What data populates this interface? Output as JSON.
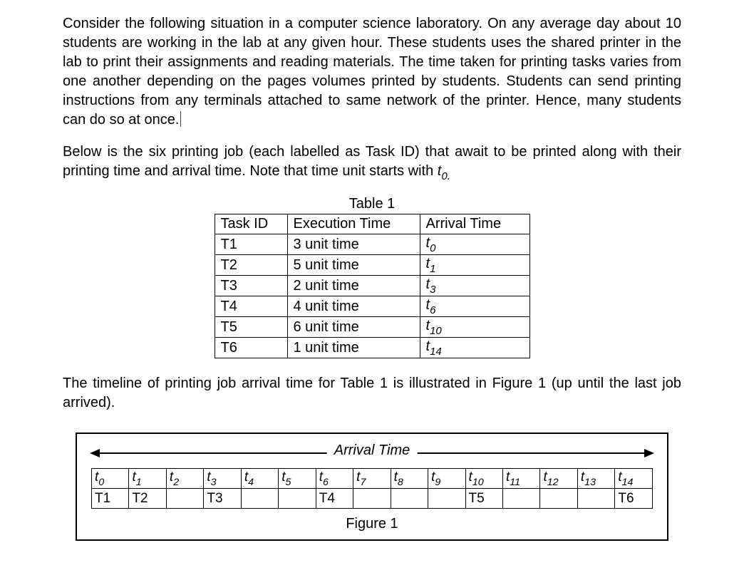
{
  "paragraph1_pre": "Consider the following situation in a computer science laboratory. On any average day about 10 students are working in the lab at any given hour. These students uses the shared printer in the lab to print their assignments and reading materials. The time taken for printing tasks varies from one another depending on the pages volumes printed by students. Students can send printing instructions from any terminals attached to same network of the printer. Hence, many students can do so at once.",
  "paragraph2_pre": "Below is the six printing job (each labelled as Task ID) that await to be printed along with their printing time and arrival time. Note that time unit starts with ",
  "paragraph2_t": "t",
  "paragraph2_sub": "0.",
  "table1": {
    "title": "Table 1",
    "headers": {
      "task": "Task ID",
      "exec": "Execution Time",
      "arr": "Arrival Time"
    },
    "rows": [
      {
        "task": "T1",
        "exec": "3 unit time",
        "arr_t": "t",
        "arr_sub": "0"
      },
      {
        "task": "T2",
        "exec": "5 unit time",
        "arr_t": "t",
        "arr_sub": "1"
      },
      {
        "task": "T3",
        "exec": "2 unit time",
        "arr_t": "t",
        "arr_sub": "3"
      },
      {
        "task": "T4",
        "exec": "4 unit time",
        "arr_t": "t",
        "arr_sub": "6"
      },
      {
        "task": "T5",
        "exec": "6 unit time",
        "arr_t": "t",
        "arr_sub": "10"
      },
      {
        "task": "T6",
        "exec": "1 unit time",
        "arr_t": "t",
        "arr_sub": "14"
      }
    ],
    "col_widths": {
      "task": 102,
      "exec": 186,
      "arr": 154
    },
    "border_color": "#000000",
    "font_size": 20
  },
  "paragraph3": "The timeline of printing job arrival time for Table 1 is illustrated in Figure 1 (up until the last job arrived).",
  "figure1": {
    "arrival_label": "Arrival Time",
    "time_labels": [
      {
        "t": "t",
        "sub": "0"
      },
      {
        "t": "t",
        "sub": "1"
      },
      {
        "t": "t",
        "sub": "2"
      },
      {
        "t": "t",
        "sub": "3"
      },
      {
        "t": "t",
        "sub": "4"
      },
      {
        "t": "t",
        "sub": "5"
      },
      {
        "t": "t",
        "sub": "6"
      },
      {
        "t": "t",
        "sub": "7"
      },
      {
        "t": "t",
        "sub": "8"
      },
      {
        "t": "t",
        "sub": "9"
      },
      {
        "t": "t",
        "sub": "10"
      },
      {
        "t": "t",
        "sub": "11"
      },
      {
        "t": "t",
        "sub": "12"
      },
      {
        "t": "t",
        "sub": "13"
      },
      {
        "t": "t",
        "sub": "14"
      }
    ],
    "task_row": [
      "T1",
      "T2",
      "",
      "T3",
      "",
      "",
      "T4",
      "",
      "",
      "",
      "T5",
      "",
      "",
      "",
      "T6"
    ],
    "caption": "Figure 1",
    "border_color": "#000000",
    "background_color": "#ffffff",
    "font_size": 19
  },
  "colors": {
    "text": "#000000",
    "background": "#ffffff",
    "border": "#000000"
  },
  "typography": {
    "font_family": "Arial",
    "body_fontsize": 20
  }
}
